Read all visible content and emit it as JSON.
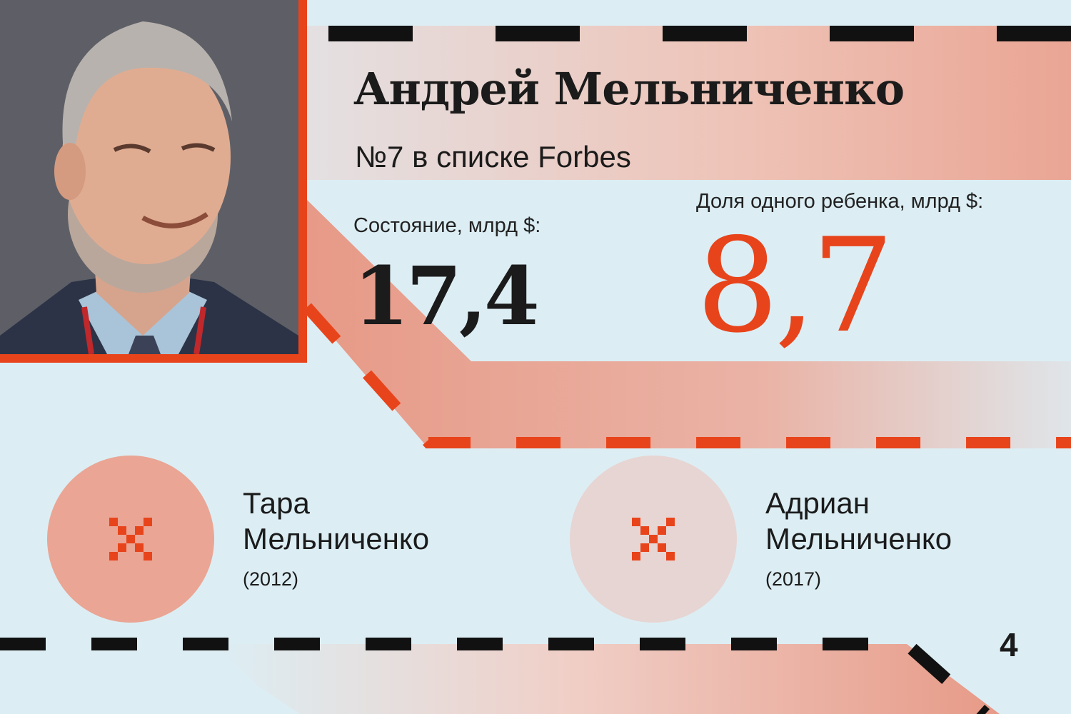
{
  "person": {
    "name": "Андрей Мельниченко",
    "rank": "№7 в списке Forbes"
  },
  "wealth": {
    "label": "Состояние, млрд $:",
    "value": "17,4"
  },
  "child_share": {
    "label": "Доля одного ребенка, млрд $:",
    "value": "8,7"
  },
  "children": [
    {
      "first_name": "Тара",
      "last_name": "Мельниченко",
      "year": "(2012)"
    },
    {
      "first_name": "Адриан",
      "last_name": "Мельниченко",
      "year": "(2017)"
    }
  ],
  "page_number": "4",
  "colors": {
    "accent": "#e8441b",
    "background": "#dceef4",
    "band": "#eaa594",
    "text": "#1b1b1b"
  },
  "icons": [
    "portrait-photo",
    "pixel-cross-icon",
    "pixel-cross-icon"
  ]
}
